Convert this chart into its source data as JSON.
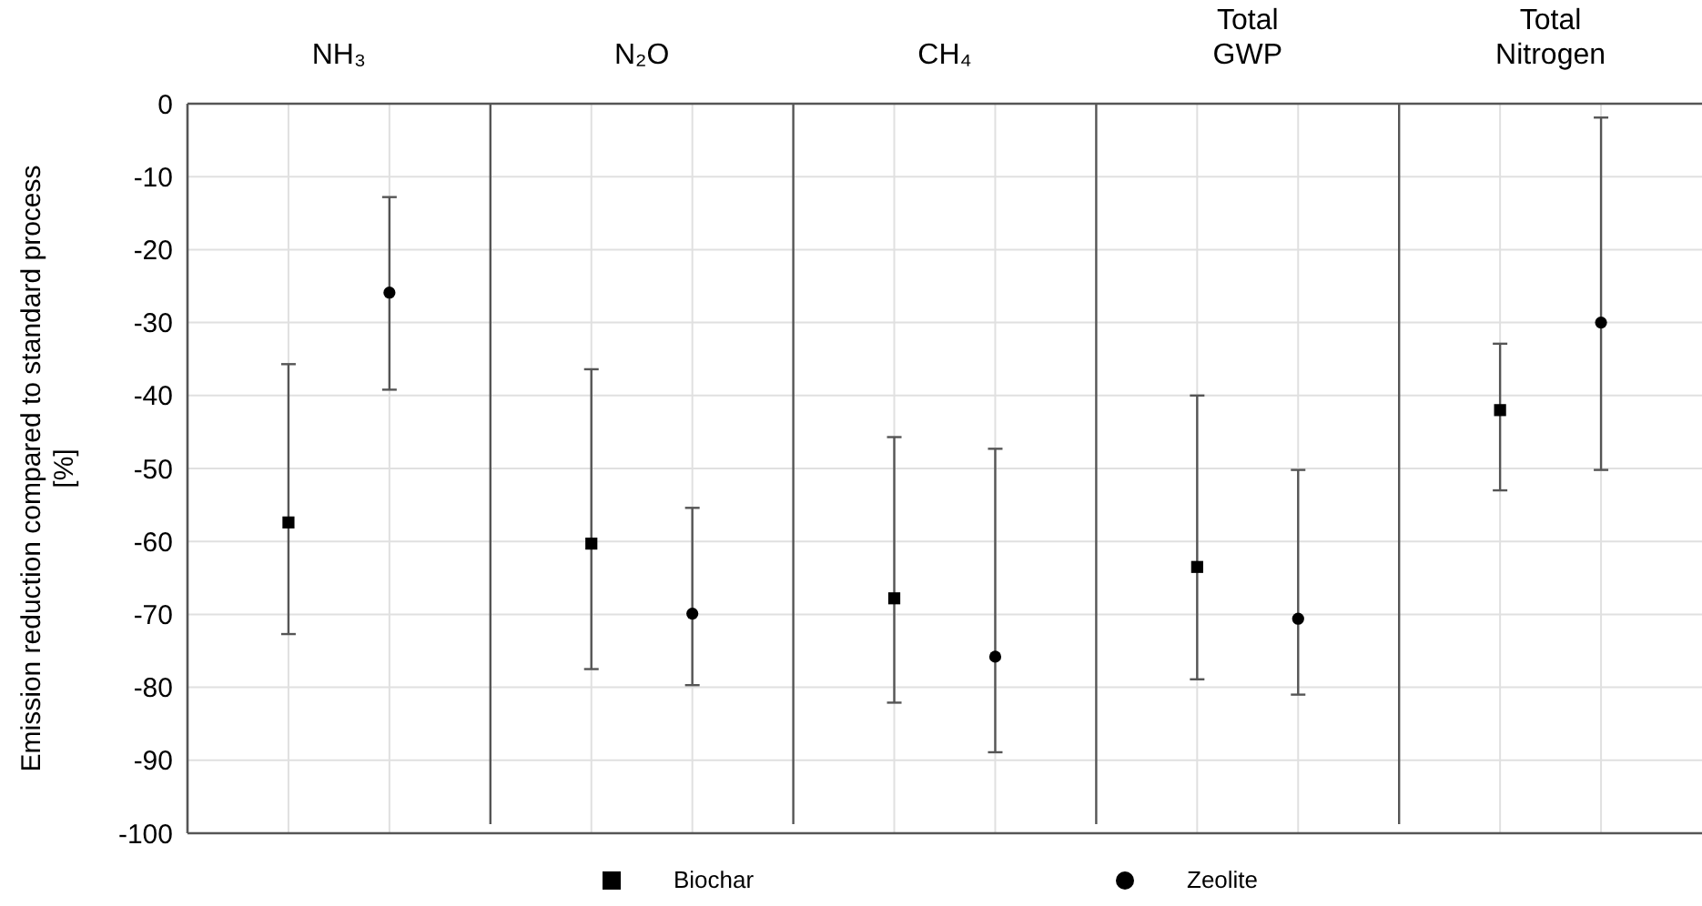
{
  "chart_data": {
    "type": "scatter",
    "categories": [
      "NH₃",
      "N₂O",
      "CH₄",
      "Total GWP",
      "Total Nitrogen"
    ],
    "ylabel": "Emission reduction compared to standard process\n[%]",
    "series": [
      {
        "name": "Biochar",
        "color": "#000000",
        "marker": "square",
        "values": [
          -57.4,
          -60.3,
          -67.8,
          -63.5,
          -42.0
        ],
        "errors": [
          [
            -72.7,
            -35.7
          ],
          [
            -77.5,
            -36.4
          ],
          [
            -82.1,
            -45.7
          ],
          [
            -78.9,
            -40.0
          ],
          [
            -53.0,
            -32.9
          ]
        ]
      },
      {
        "name": "Zeolite",
        "color": "#000000",
        "marker": "circle",
        "values": [
          -25.9,
          -69.9,
          -75.8,
          -70.6,
          -30.0
        ],
        "errors": [
          [
            -39.2,
            -12.8
          ],
          [
            -79.7,
            -55.4
          ],
          [
            -88.9,
            -47.3
          ],
          [
            -81.0,
            -50.2
          ],
          [
            -50.2,
            -1.9
          ]
        ]
      }
    ],
    "ylim": [
      -100,
      0
    ],
    "yticks": [
      0,
      -10,
      -20,
      -30,
      -40,
      -50,
      -60,
      -70,
      -80,
      -90,
      -100
    ],
    "grid": true,
    "legend": "bottom"
  }
}
